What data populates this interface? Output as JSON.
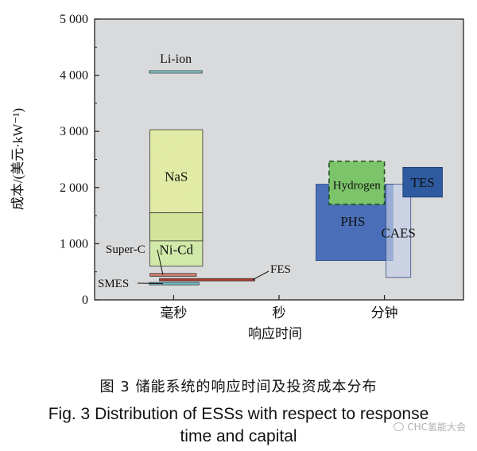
{
  "chart_data": {
    "type": "bar",
    "ylabel": "成本/(美元·kW⁻¹)",
    "xlabel": "响应时间",
    "ylim": [
      0,
      5000
    ],
    "yticks": [
      0,
      1000,
      2000,
      3000,
      4000,
      5000
    ],
    "ytick_labels": [
      "0",
      "1 000",
      "2 000",
      "3 000",
      "4 000",
      "5 000"
    ],
    "xcategories": [
      "毫秒",
      "秒",
      "分钟"
    ],
    "grid": false,
    "series": [
      {
        "name": "Li-ion",
        "x": [
          1.04,
          2.04
        ],
        "y": [
          4040,
          4080
        ],
        "color": "#8fd2dc",
        "label_color": "#111111"
      },
      {
        "name": "NaS",
        "x": [
          1.05,
          2.05
        ],
        "y": [
          1550,
          3030
        ],
        "color": "#e0eaa2",
        "label_color": "#111111"
      },
      {
        "name": "Ni-Cd",
        "x": [
          1.05,
          2.05
        ],
        "y": [
          600,
          1550
        ],
        "color": "#cfe8a6",
        "label_color": "#111111"
      },
      {
        "name": "Super-C",
        "x": [
          1.05,
          1.93
        ],
        "y": [
          420,
          470
        ],
        "color": "#d4806a",
        "label_color": "#111111"
      },
      {
        "name": "FES",
        "x": [
          1.23,
          3.04
        ],
        "y": [
          340,
          380
        ],
        "color": "#b33a30",
        "label_color": "#111111"
      },
      {
        "name": "SMES",
        "x": [
          1.04,
          1.98
        ],
        "y": [
          270,
          310
        ],
        "color": "#6fc3cf",
        "label_color": "#111111"
      },
      {
        "name": "PHS",
        "x": [
          4.2,
          5.66
        ],
        "y": [
          700,
          2060
        ],
        "color": "#4a6fb8",
        "label_color": "#111111"
      },
      {
        "name": "CAES",
        "x": [
          5.53,
          6.0
        ],
        "y": [
          400,
          2060
        ],
        "color": "#c3cee8",
        "label_color": "#111111"
      },
      {
        "name": "Hydrogen",
        "x": [
          4.45,
          5.5
        ],
        "y": [
          1700,
          2470
        ],
        "color": "#7cc46a",
        "label_color": "#111111"
      },
      {
        "name": "TES",
        "x": [
          5.85,
          6.6
        ],
        "y": [
          1830,
          2360
        ],
        "color": "#2e5aa0",
        "label_color": "#111111"
      }
    ]
  },
  "caption": {
    "cn": "图 3  储能系统的响应时间及投资成本分布",
    "en_line1": "Fig. 3    Distribution of ESSs with respect to response",
    "en_line2": "time and capital"
  },
  "watermark": {
    "text": "CHC氢能大会",
    "icon": "wechat-icon"
  }
}
